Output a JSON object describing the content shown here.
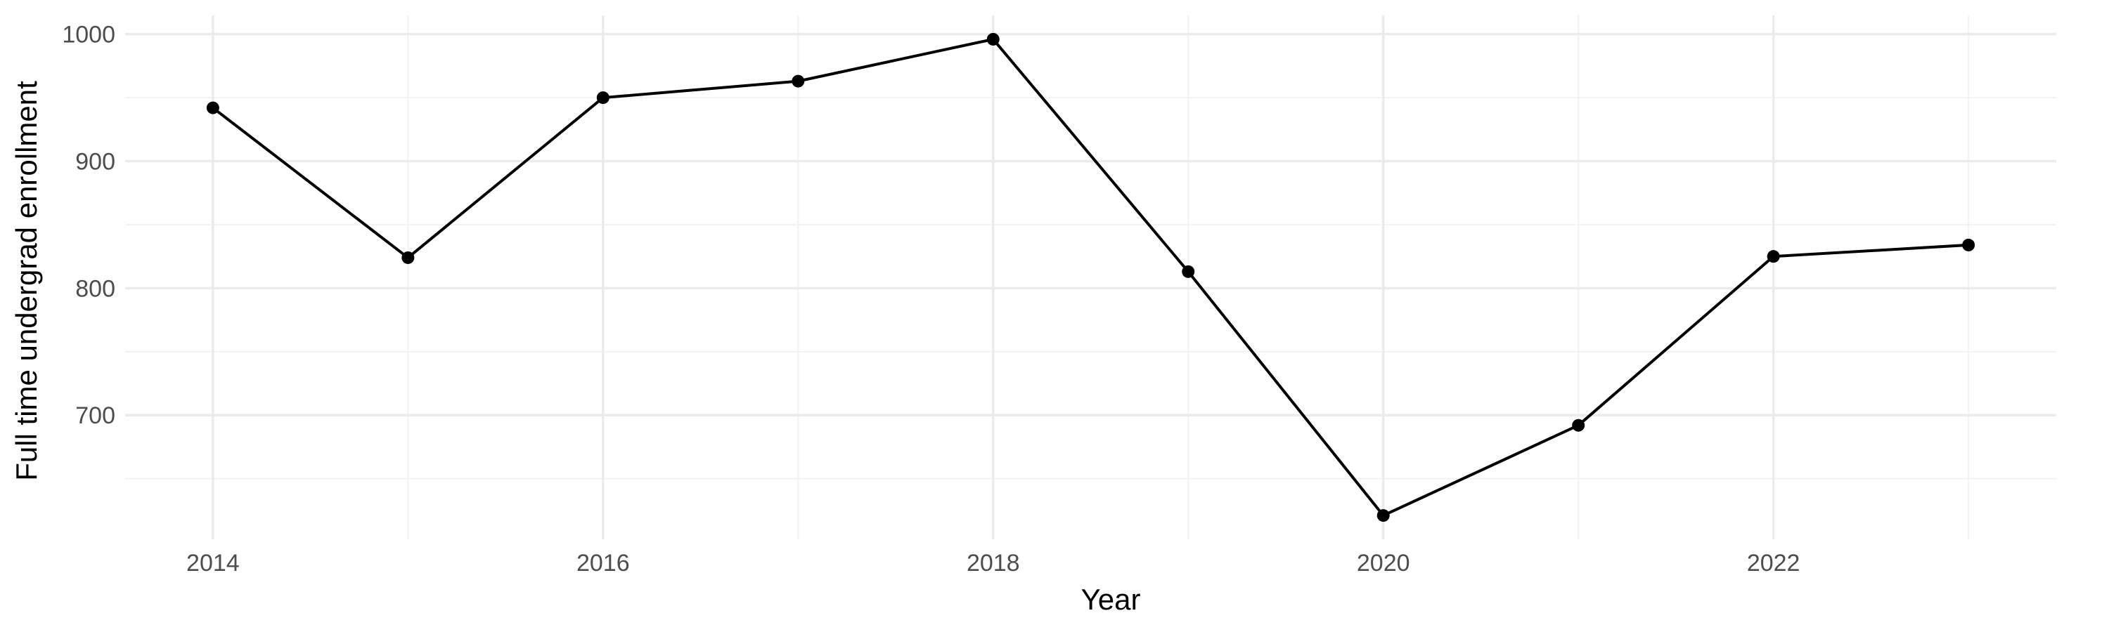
{
  "chart_data": {
    "type": "line",
    "title": "",
    "xlabel": "Year",
    "ylabel": "Full time undergrad enrollment",
    "x": [
      2014,
      2015,
      2016,
      2017,
      2018,
      2019,
      2020,
      2021,
      2022,
      2023
    ],
    "series": [
      {
        "values": [
          942,
          824,
          950,
          963,
          996,
          813,
          621,
          692,
          825,
          834
        ],
        "color": "#000000"
      }
    ],
    "x_ticks": [
      2014,
      2016,
      2018,
      2020,
      2022
    ],
    "y_ticks": [
      700,
      800,
      900,
      1000
    ],
    "xlim": [
      2013.55,
      2023.45
    ],
    "ylim": [
      602.25,
      1014.75
    ],
    "grid": true,
    "legend": "none"
  }
}
